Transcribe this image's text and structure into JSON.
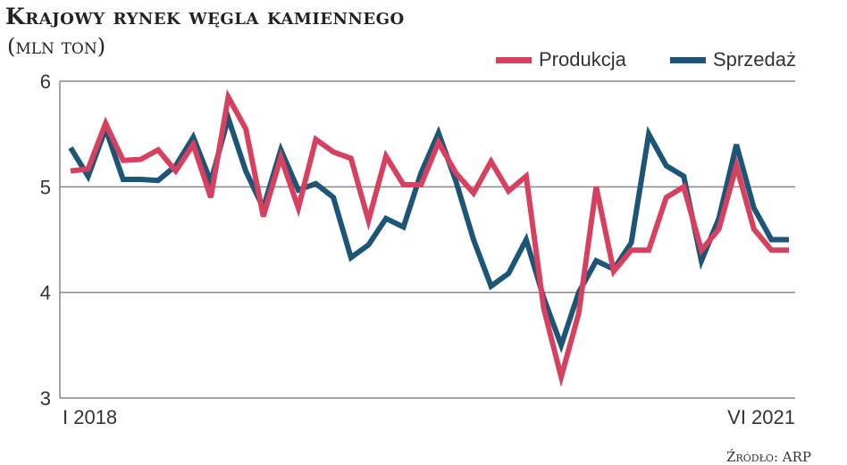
{
  "chart_data": {
    "type": "line",
    "title": "Krajowy rynek węgla kamiennego",
    "subtitle": "(mln ton)",
    "x_start_label": "I 2018",
    "x_end_label": "VI 2021",
    "ylim": [
      3,
      6
    ],
    "yticks": [
      "3",
      "4",
      "5",
      "6"
    ],
    "grid": true,
    "legend_position": "top-right",
    "series": [
      {
        "name": "Produkcja",
        "color": "#d8405f",
        "values": [
          5.15,
          5.17,
          5.6,
          5.25,
          5.26,
          5.35,
          5.15,
          5.4,
          4.9,
          5.85,
          5.55,
          4.72,
          5.28,
          4.8,
          5.45,
          5.33,
          5.27,
          4.68,
          5.29,
          5.02,
          5.02,
          5.42,
          5.13,
          4.94,
          5.24,
          4.96,
          5.1,
          3.85,
          3.2,
          3.8,
          5.0,
          4.2,
          4.4,
          4.4,
          4.9,
          5.0,
          4.4,
          4.6,
          5.2,
          4.6,
          4.4,
          4.4
        ]
      },
      {
        "name": "Sprzedaż",
        "color": "#1d5577",
        "values": [
          5.37,
          5.1,
          5.55,
          5.07,
          5.07,
          5.06,
          5.2,
          5.47,
          5.05,
          5.65,
          5.15,
          4.8,
          5.35,
          4.97,
          5.03,
          4.9,
          4.33,
          4.45,
          4.7,
          4.62,
          5.13,
          5.51,
          5.05,
          4.5,
          4.06,
          4.18,
          4.5,
          3.95,
          3.5,
          4.0,
          4.3,
          4.22,
          4.47,
          5.5,
          5.2,
          5.1,
          4.3,
          4.7,
          5.4,
          4.8,
          4.5,
          4.5
        ]
      }
    ],
    "source": "Źródło: ARP"
  }
}
